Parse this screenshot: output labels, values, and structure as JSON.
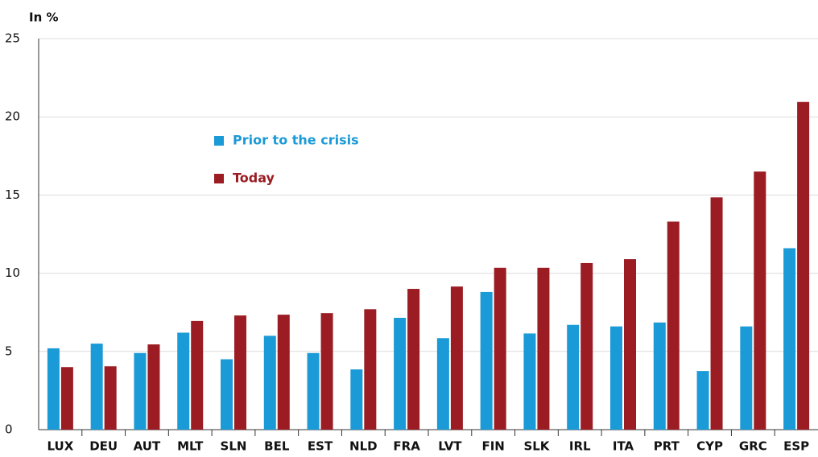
{
  "chart_data": {
    "type": "bar",
    "y_label": "In %",
    "categories": [
      "LUX",
      "DEU",
      "AUT",
      "MLT",
      "SLN",
      "BEL",
      "EST",
      "NLD",
      "FRA",
      "LVT",
      "FIN",
      "SLK",
      "IRL",
      "ITA",
      "PRT",
      "CYP",
      "GRC",
      "ESP"
    ],
    "series": [
      {
        "name": "Prior to the crisis",
        "color": "#1a9ad6",
        "values": [
          5.2,
          5.5,
          4.9,
          6.2,
          4.5,
          6.0,
          4.9,
          3.85,
          7.15,
          5.85,
          8.8,
          6.15,
          6.7,
          6.6,
          6.85,
          3.75,
          6.6,
          11.6
        ]
      },
      {
        "name": "Today",
        "color": "#9b1c23",
        "values": [
          4.0,
          4.05,
          5.45,
          6.95,
          7.3,
          7.35,
          7.45,
          7.7,
          9.0,
          9.15,
          10.35,
          10.35,
          10.65,
          10.9,
          13.3,
          14.85,
          16.5,
          20.95
        ]
      }
    ],
    "ylim": [
      0,
      25
    ],
    "yticks": [
      0,
      5,
      10,
      15,
      20,
      25
    ],
    "grid": true
  }
}
